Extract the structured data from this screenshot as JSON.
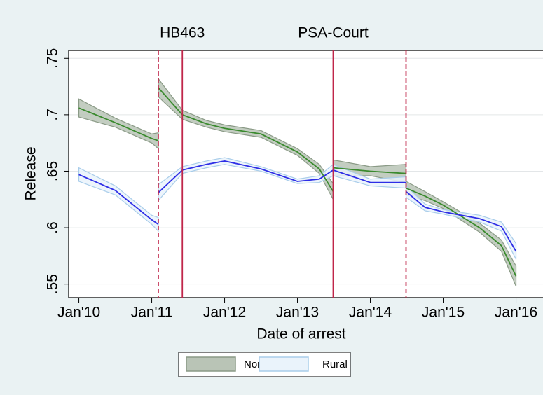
{
  "chart_data": {
    "type": "line",
    "x_label": "Date of arrest",
    "y_label": "Release",
    "x": [
      2010,
      2010.5,
      2011.0,
      2011.09,
      2011.09,
      2011.09,
      2011.42,
      2011.75,
      2012,
      2012.5,
      2013,
      2013.3,
      2013.49,
      2013.49,
      2013.49,
      2014,
      2014.49,
      2014.49,
      2014.49,
      2014.75,
      2015,
      2015.5,
      2015.8,
      2016
    ],
    "series": [
      {
        "name": "Non-rural",
        "color": "#3a8a2e",
        "band_color": "#b9c4b6",
        "band_edge": "#8a9a86",
        "values": [
          0.706,
          0.693,
          0.679,
          0.677,
          null,
          0.724,
          0.7,
          0.692,
          0.688,
          0.683,
          0.667,
          0.652,
          0.632,
          null,
          0.653,
          0.65,
          0.648,
          null,
          0.635,
          0.628,
          0.62,
          0.6,
          0.584,
          0.557
        ],
        "lower": [
          0.698,
          0.689,
          0.675,
          0.67,
          null,
          0.716,
          0.696,
          0.689,
          0.685,
          0.68,
          0.664,
          0.648,
          0.625,
          null,
          0.646,
          0.646,
          0.64,
          null,
          0.629,
          0.624,
          0.617,
          0.596,
          0.579,
          0.548
        ],
        "upper": [
          0.714,
          0.697,
          0.683,
          0.684,
          null,
          0.732,
          0.704,
          0.695,
          0.691,
          0.686,
          0.67,
          0.656,
          0.639,
          null,
          0.66,
          0.654,
          0.656,
          null,
          0.641,
          0.632,
          0.623,
          0.604,
          0.589,
          0.566
        ]
      },
      {
        "name": "Rural",
        "color": "#2e2ee6",
        "band_color": "#eaf3fb",
        "band_edge": "#a9cdea",
        "values": [
          0.647,
          0.633,
          0.607,
          0.603,
          null,
          0.631,
          0.651,
          0.656,
          0.659,
          0.652,
          0.641,
          0.643,
          0.651,
          null,
          0.651,
          0.64,
          0.64,
          null,
          0.632,
          0.618,
          0.614,
          0.608,
          0.601,
          0.579
        ],
        "lower": [
          0.641,
          0.629,
          0.603,
          0.597,
          null,
          0.624,
          0.648,
          0.653,
          0.656,
          0.65,
          0.639,
          0.64,
          0.646,
          null,
          0.646,
          0.637,
          0.635,
          null,
          0.627,
          0.615,
          0.612,
          0.605,
          0.597,
          0.572
        ],
        "upper": [
          0.653,
          0.637,
          0.611,
          0.609,
          null,
          0.638,
          0.654,
          0.659,
          0.662,
          0.654,
          0.643,
          0.646,
          0.656,
          null,
          0.656,
          0.643,
          0.645,
          null,
          0.637,
          0.621,
          0.616,
          0.611,
          0.605,
          0.586
        ]
      }
    ],
    "xlim": [
      2009.86,
      2016.37
    ],
    "xticks": [
      {
        "value": 2010,
        "label": "Jan'10"
      },
      {
        "value": 2011,
        "label": "Jan'11"
      },
      {
        "value": 2012,
        "label": "Jan'12"
      },
      {
        "value": 2013,
        "label": "Jan'13"
      },
      {
        "value": 2014,
        "label": "Jan'14"
      },
      {
        "value": 2015,
        "label": "Jan'15"
      },
      {
        "value": 2016,
        "label": "Jan'16"
      }
    ],
    "ylim": [
      0.538,
      0.757
    ],
    "yticks": [
      {
        "value": 0.55,
        "label": ".55"
      },
      {
        "value": 0.6,
        "label": ".6"
      },
      {
        "value": 0.65,
        "label": ".65"
      },
      {
        "value": 0.7,
        "label": ".7"
      },
      {
        "value": 0.75,
        "label": ".75"
      }
    ],
    "grid": true,
    "vlines": [
      {
        "x": 2011.09,
        "style": "dashed"
      },
      {
        "x": 2011.42,
        "style": "solid",
        "label": "HB463"
      },
      {
        "x": 2013.49,
        "style": "solid",
        "label": "PSA-Court"
      },
      {
        "x": 2014.49,
        "style": "dashed"
      }
    ],
    "vline_color": "#c0264a",
    "legend": "bottom"
  }
}
